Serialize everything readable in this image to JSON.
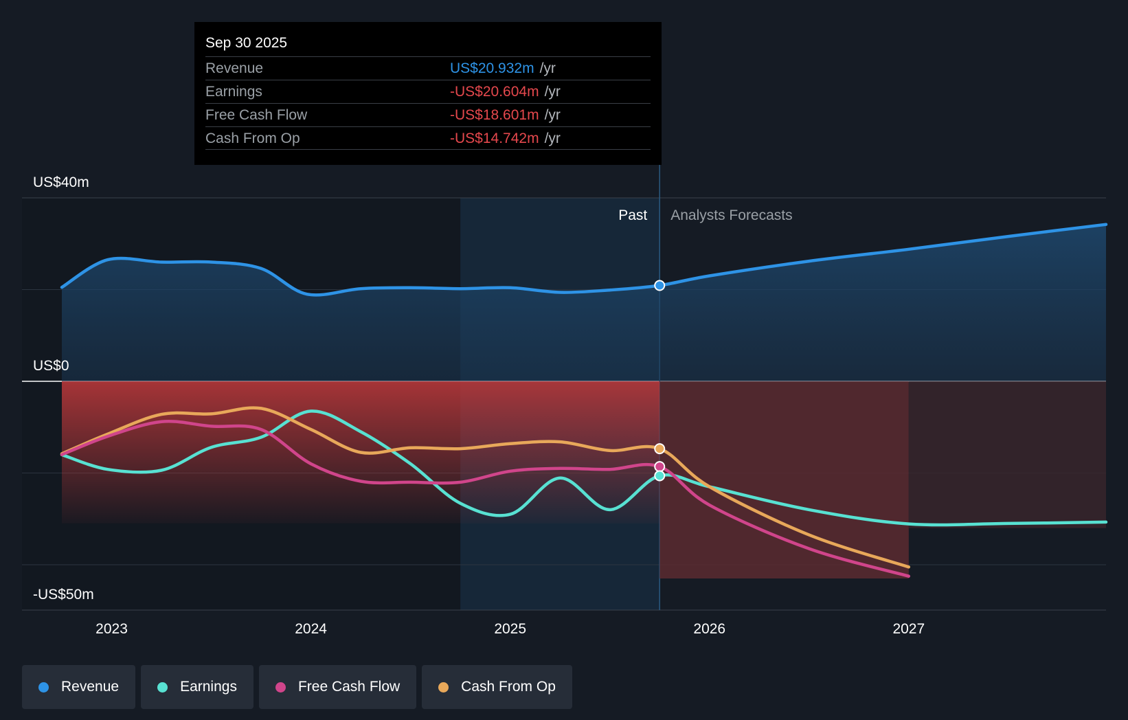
{
  "chart_data": {
    "type": "line",
    "title": "",
    "y_axis": {
      "top_label": "US$40m",
      "zero_label": "US$0",
      "bottom_label": "-US$50m",
      "ylim": [
        -50,
        40
      ],
      "gridlines": [
        40,
        20,
        0,
        -20,
        -40
      ]
    },
    "x_axis": {
      "ticks": [
        2023,
        2024,
        2025,
        2026,
        2027
      ],
      "tick_labels": [
        "2023",
        "2024",
        "2025",
        "2026",
        "2027"
      ],
      "xlim": [
        2022.55,
        2027.99
      ]
    },
    "past_label": "Past",
    "forecast_label": "Analysts Forecasts",
    "divider_x": 2025.75,
    "highlight_start_x": 2024.75,
    "forecast_fill_end_x": 2027.0,
    "series": [
      {
        "name": "Revenue",
        "color": "#2e93e6",
        "x": [
          2022.75,
          2022.98,
          2023.25,
          2023.5,
          2023.75,
          2023.98,
          2024.25,
          2024.5,
          2024.75,
          2025.0,
          2025.25,
          2025.5,
          2025.75,
          2026.0,
          2026.5,
          2027.0,
          2027.5,
          2027.99
        ],
        "values": [
          20.5,
          26.5,
          26.0,
          26.0,
          24.6,
          19.0,
          20.2,
          20.4,
          20.2,
          20.4,
          19.4,
          19.9,
          20.9,
          23.0,
          26.2,
          28.8,
          31.6,
          34.2
        ]
      },
      {
        "name": "Earnings",
        "color": "#58e1d2",
        "x": [
          2022.75,
          2022.98,
          2023.25,
          2023.5,
          2023.75,
          2024.0,
          2024.25,
          2024.5,
          2024.75,
          2025.0,
          2025.25,
          2025.5,
          2025.75,
          2026.0,
          2026.5,
          2027.0,
          2027.5,
          2027.99
        ],
        "values": [
          -16.0,
          -19.2,
          -19.4,
          -14.4,
          -12.2,
          -6.5,
          -11.0,
          -18.0,
          -26.6,
          -29.0,
          -21.1,
          -28.0,
          -20.6,
          -23.0,
          -28.0,
          -31.1,
          -31.0,
          -30.7
        ]
      },
      {
        "name": "Free Cash Flow",
        "color": "#d0458b",
        "x": [
          2022.75,
          2022.98,
          2023.25,
          2023.5,
          2023.75,
          2024.0,
          2024.25,
          2024.5,
          2024.75,
          2025.0,
          2025.25,
          2025.5,
          2025.75,
          2026.0,
          2026.5,
          2027.0
        ],
        "values": [
          -16.0,
          -12.0,
          -8.8,
          -9.8,
          -10.5,
          -18.0,
          -21.8,
          -22.0,
          -22.0,
          -19.6,
          -19.0,
          -19.2,
          -18.6,
          -27.0,
          -36.5,
          -42.5
        ]
      },
      {
        "name": "Cash From Op",
        "color": "#e8a85a",
        "x": [
          2022.75,
          2022.98,
          2023.25,
          2023.5,
          2023.75,
          2024.0,
          2024.25,
          2024.5,
          2024.75,
          2025.0,
          2025.25,
          2025.5,
          2025.75,
          2026.0,
          2026.5,
          2027.0
        ],
        "values": [
          -15.8,
          -11.5,
          -7.2,
          -7.1,
          -5.9,
          -10.5,
          -15.5,
          -14.5,
          -14.7,
          -13.6,
          -13.2,
          -15.1,
          -14.7,
          -23.0,
          -33.5,
          -40.5
        ]
      }
    ]
  },
  "tooltip": {
    "date": "Sep 30 2025",
    "rows": [
      {
        "label": "Revenue",
        "value": "US$20.932m",
        "unit": "/yr",
        "color": "#2e93e6"
      },
      {
        "label": "Earnings",
        "value": "-US$20.604m",
        "unit": "/yr",
        "color": "#e5484d"
      },
      {
        "label": "Free Cash Flow",
        "value": "-US$18.601m",
        "unit": "/yr",
        "color": "#e5484d"
      },
      {
        "label": "Cash From Op",
        "value": "-US$14.742m",
        "unit": "/yr",
        "color": "#e5484d"
      }
    ]
  },
  "legend": [
    {
      "label": "Revenue",
      "color": "#2e93e6"
    },
    {
      "label": "Earnings",
      "color": "#58e1d2"
    },
    {
      "label": "Free Cash Flow",
      "color": "#d0458b"
    },
    {
      "label": "Cash From Op",
      "color": "#e8a85a"
    }
  ]
}
